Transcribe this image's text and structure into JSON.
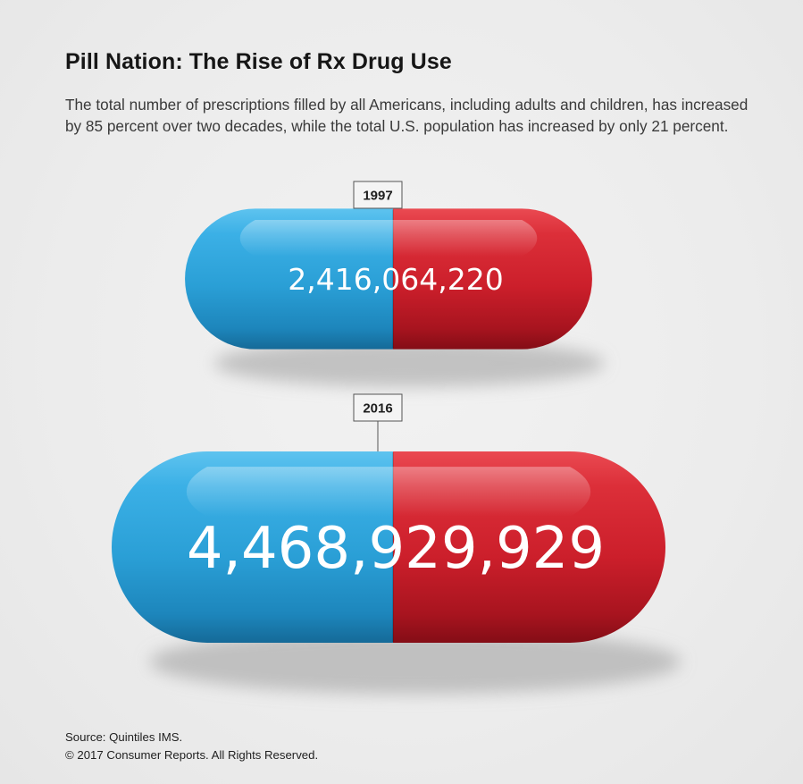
{
  "title": "Pill Nation: The Rise of Rx Drug Use",
  "subtitle": "The total number of prescriptions filled by all Americans, including adults and children, has increased by 85 percent over two decades, while the total U.S. population has increased by only 21 percent.",
  "chart_data": {
    "type": "bar",
    "categories": [
      "1997",
      "2016"
    ],
    "values": [
      2416064220,
      4468929929
    ],
    "value_labels": [
      "2,416,064,220",
      "4,468,929,929"
    ],
    "encoding": "pill capsule area",
    "colors": {
      "left_half": "#2a9fd6",
      "right_half": "#d11f2c",
      "label_box_border": "#555555",
      "value_text": "#ffffff"
    }
  },
  "footer": {
    "source": "Source: Quintiles IMS.",
    "copyright": "© 2017 Consumer Reports. All Rights Reserved."
  }
}
